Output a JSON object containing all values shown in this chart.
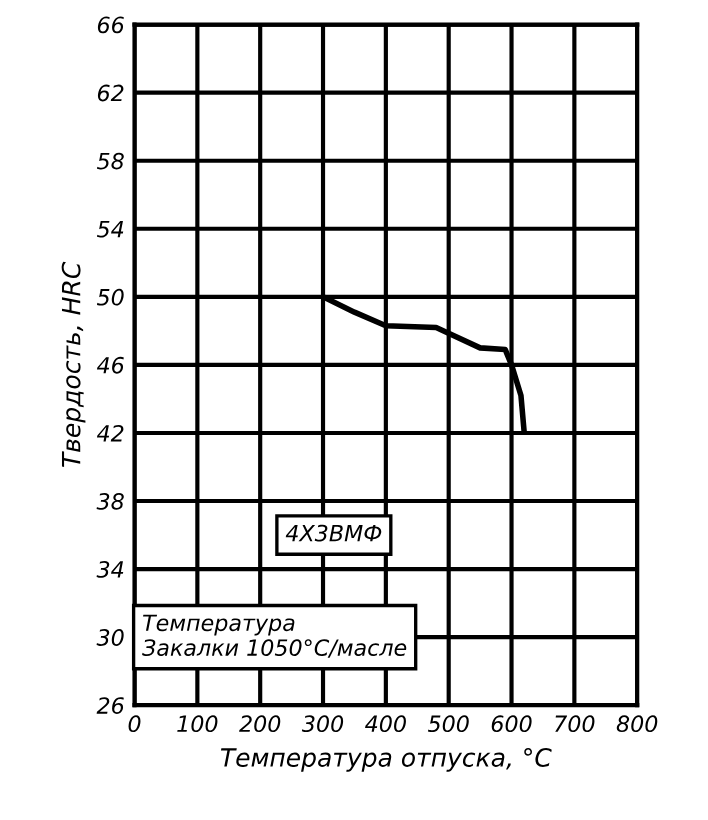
{
  "chart_data": {
    "type": "line",
    "xlabel": "Температура отпуска, °С",
    "ylabel": "Твердость, HRC",
    "x": [
      300,
      350,
      400,
      480,
      550,
      590,
      600,
      615,
      620
    ],
    "series": [
      {
        "color": "#000000",
        "values": [
          50,
          49.1,
          48.3,
          48.2,
          47.0,
          46.9,
          46.0,
          44.2,
          42.1
        ]
      }
    ],
    "xlim": [
      0,
      800
    ],
    "xticks": [
      0,
      100,
      200,
      300,
      400,
      500,
      600,
      700,
      800
    ],
    "ylim": [
      26,
      66
    ],
    "yticks": [
      26,
      30,
      34,
      38,
      42,
      46,
      50,
      54,
      58,
      62,
      66
    ],
    "grid": true,
    "marker": "none",
    "line_style": "solid",
    "annotations": [
      "4Х3ВМФ",
      "Температура\nЗакалки 1050°С/масле"
    ]
  }
}
